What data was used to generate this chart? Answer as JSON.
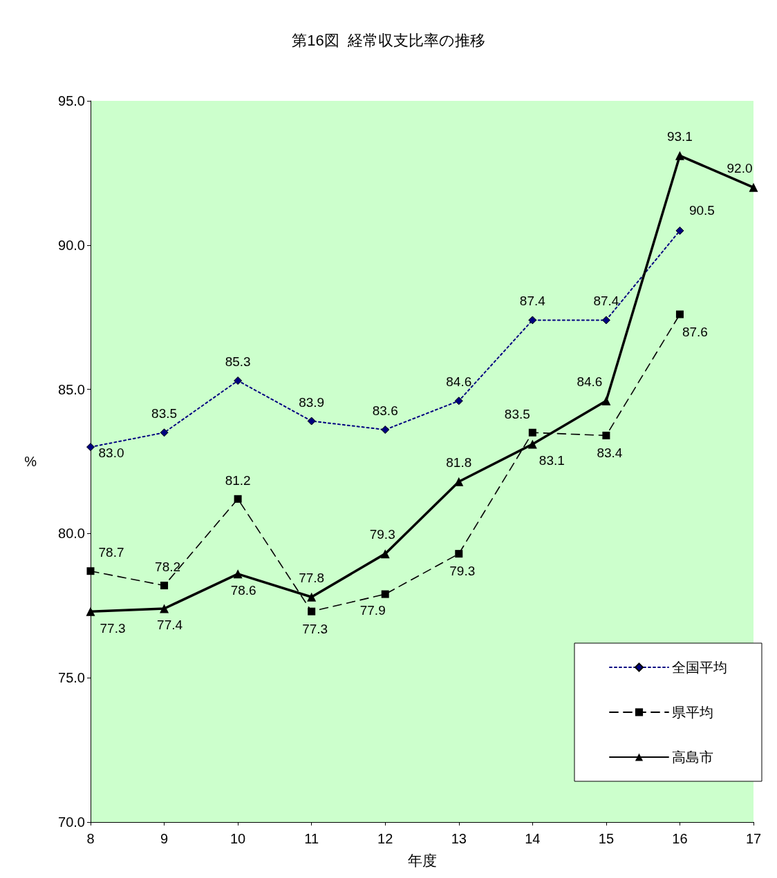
{
  "chart_data": {
    "type": "line",
    "title": "第16図  経常収支比率の推移",
    "xlabel": "年度",
    "ylabel": "%",
    "categories": [
      "8",
      "9",
      "10",
      "11",
      "12",
      "13",
      "14",
      "15",
      "16",
      "17"
    ],
    "series": [
      {
        "name": "全国平均",
        "color": "#000080",
        "marker": "diamond",
        "line_style": "dotted",
        "values": [
          83.0,
          83.5,
          85.3,
          83.9,
          83.6,
          84.6,
          87.4,
          87.4,
          90.5,
          null
        ],
        "value_labels": [
          "83.0",
          "83.5",
          "85.3",
          "83.9",
          "83.6",
          "84.6",
          "87.4",
          "87.4",
          "90.5",
          null
        ]
      },
      {
        "name": "県平均",
        "color": "#000000",
        "marker": "square",
        "line_style": "dashed",
        "values": [
          78.7,
          78.2,
          81.2,
          77.3,
          77.9,
          79.3,
          83.5,
          83.4,
          87.6,
          null
        ],
        "value_labels": [
          "78.7",
          "78.2",
          "81.2",
          "77.3",
          "77.9",
          "79.3",
          "83.5",
          "83.4",
          "87.6",
          null
        ]
      },
      {
        "name": "高島市",
        "color": "#000000",
        "marker": "triangle",
        "line_style": "solid",
        "values": [
          77.3,
          77.4,
          78.6,
          77.8,
          79.3,
          81.8,
          83.1,
          84.6,
          93.1,
          92.0
        ],
        "value_labels": [
          "77.3",
          "77.4",
          "78.6",
          "77.8",
          "79.3",
          "81.8",
          "83.1",
          "84.6",
          "93.1",
          "92.0"
        ]
      }
    ],
    "ylim": [
      70,
      95
    ],
    "yticks": [
      {
        "value": 70,
        "label": "70.0"
      },
      {
        "value": 75,
        "label": "75.0"
      },
      {
        "value": 80,
        "label": "80.0"
      },
      {
        "value": 85,
        "label": "85.0"
      },
      {
        "value": 90,
        "label": "90.0"
      },
      {
        "value": 95,
        "label": "95.0"
      }
    ],
    "legend": "bottom right"
  }
}
